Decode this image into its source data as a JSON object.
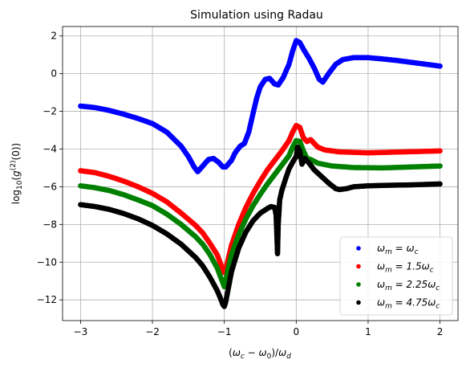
{
  "chart_data": {
    "type": "scatter",
    "title": "Simulation using Radau",
    "xlabel": "(ω_c − ω_0)/ω_d",
    "ylabel": "log₁₀(g⁽²⁾(0))",
    "xlim": [
      -3.25,
      2.25
    ],
    "ylim": [
      -13.1,
      2.5
    ],
    "xticks": [
      -3,
      -2,
      -1,
      0,
      1,
      2
    ],
    "xtick_labels": [
      "−3",
      "−2",
      "−1",
      "0",
      "1",
      "2"
    ],
    "yticks": [
      -12,
      -10,
      -8,
      -6,
      -4,
      -2,
      0,
      2
    ],
    "ytick_labels": [
      "−12",
      "−10",
      "−8",
      "−6",
      "−4",
      "−2",
      "0",
      "2"
    ],
    "grid": true,
    "legend_position": "lower-right",
    "series": [
      {
        "name": "ω_m = ω_c",
        "label_parts": [
          "ω",
          "m",
          " = ω",
          "c"
        ],
        "color": "#0000ff",
        "points": [
          [
            -3.0,
            -1.72
          ],
          [
            -2.8,
            -1.8
          ],
          [
            -2.6,
            -1.95
          ],
          [
            -2.4,
            -2.15
          ],
          [
            -2.2,
            -2.38
          ],
          [
            -2.0,
            -2.65
          ],
          [
            -1.8,
            -3.1
          ],
          [
            -1.6,
            -3.85
          ],
          [
            -1.5,
            -4.4
          ],
          [
            -1.42,
            -4.95
          ],
          [
            -1.37,
            -5.2
          ],
          [
            -1.3,
            -4.9
          ],
          [
            -1.22,
            -4.55
          ],
          [
            -1.15,
            -4.5
          ],
          [
            -1.08,
            -4.7
          ],
          [
            -1.02,
            -4.95
          ],
          [
            -0.98,
            -4.95
          ],
          [
            -0.9,
            -4.6
          ],
          [
            -0.85,
            -4.2
          ],
          [
            -0.78,
            -3.85
          ],
          [
            -0.72,
            -3.7
          ],
          [
            -0.66,
            -3.1
          ],
          [
            -0.6,
            -2.1
          ],
          [
            -0.55,
            -1.3
          ],
          [
            -0.5,
            -0.7
          ],
          [
            -0.43,
            -0.3
          ],
          [
            -0.37,
            -0.25
          ],
          [
            -0.3,
            -0.55
          ],
          [
            -0.25,
            -0.6
          ],
          [
            -0.18,
            -0.2
          ],
          [
            -0.1,
            0.5
          ],
          [
            -0.05,
            1.2
          ],
          [
            0.0,
            1.75
          ],
          [
            0.05,
            1.65
          ],
          [
            0.1,
            1.3
          ],
          [
            0.18,
            0.8
          ],
          [
            0.25,
            0.3
          ],
          [
            0.32,
            -0.3
          ],
          [
            0.37,
            -0.45
          ],
          [
            0.45,
            0.0
          ],
          [
            0.55,
            0.5
          ],
          [
            0.65,
            0.75
          ],
          [
            0.8,
            0.85
          ],
          [
            1.0,
            0.85
          ],
          [
            1.2,
            0.78
          ],
          [
            1.4,
            0.7
          ],
          [
            1.6,
            0.6
          ],
          [
            1.8,
            0.5
          ],
          [
            2.0,
            0.4
          ]
        ]
      },
      {
        "name": "ω_m = 1.5ω_c",
        "label_parts": [
          "ω",
          "m",
          " = 1.5ω",
          "c"
        ],
        "color": "#ff0000",
        "points": [
          [
            -3.0,
            -5.15
          ],
          [
            -2.8,
            -5.25
          ],
          [
            -2.6,
            -5.45
          ],
          [
            -2.4,
            -5.7
          ],
          [
            -2.2,
            -6.0
          ],
          [
            -2.0,
            -6.35
          ],
          [
            -1.8,
            -6.8
          ],
          [
            -1.6,
            -7.4
          ],
          [
            -1.4,
            -8.05
          ],
          [
            -1.3,
            -8.45
          ],
          [
            -1.2,
            -9.0
          ],
          [
            -1.1,
            -9.6
          ],
          [
            -1.05,
            -10.1
          ],
          [
            -1.02,
            -10.4
          ],
          [
            -1.0,
            -10.55
          ],
          [
            -0.98,
            -10.35
          ],
          [
            -0.95,
            -9.9
          ],
          [
            -0.9,
            -9.1
          ],
          [
            -0.8,
            -8.0
          ],
          [
            -0.7,
            -7.1
          ],
          [
            -0.6,
            -6.35
          ],
          [
            -0.5,
            -5.7
          ],
          [
            -0.4,
            -5.1
          ],
          [
            -0.3,
            -4.6
          ],
          [
            -0.2,
            -4.1
          ],
          [
            -0.1,
            -3.55
          ],
          [
            -0.05,
            -3.1
          ],
          [
            0.0,
            -2.75
          ],
          [
            0.05,
            -2.85
          ],
          [
            0.1,
            -3.4
          ],
          [
            0.15,
            -3.6
          ],
          [
            0.2,
            -3.5
          ],
          [
            0.25,
            -3.7
          ],
          [
            0.3,
            -3.9
          ],
          [
            0.4,
            -4.05
          ],
          [
            0.6,
            -4.15
          ],
          [
            1.0,
            -4.2
          ],
          [
            1.5,
            -4.15
          ],
          [
            2.0,
            -4.1
          ]
        ]
      },
      {
        "name": "ω_m = 2.25ω_c",
        "label_parts": [
          "ω",
          "m",
          " = 2.25ω",
          "c"
        ],
        "color": "#008000",
        "points": [
          [
            -3.0,
            -5.95
          ],
          [
            -2.8,
            -6.05
          ],
          [
            -2.6,
            -6.2
          ],
          [
            -2.4,
            -6.42
          ],
          [
            -2.2,
            -6.7
          ],
          [
            -2.0,
            -7.0
          ],
          [
            -1.8,
            -7.45
          ],
          [
            -1.6,
            -8.0
          ],
          [
            -1.4,
            -8.65
          ],
          [
            -1.3,
            -9.05
          ],
          [
            -1.2,
            -9.6
          ],
          [
            -1.1,
            -10.3
          ],
          [
            -1.05,
            -10.8
          ],
          [
            -1.02,
            -11.1
          ],
          [
            -1.0,
            -11.3
          ],
          [
            -0.98,
            -11.0
          ],
          [
            -0.95,
            -10.4
          ],
          [
            -0.9,
            -9.6
          ],
          [
            -0.8,
            -8.55
          ],
          [
            -0.7,
            -7.7
          ],
          [
            -0.6,
            -7.0
          ],
          [
            -0.5,
            -6.4
          ],
          [
            -0.4,
            -5.85
          ],
          [
            -0.3,
            -5.35
          ],
          [
            -0.2,
            -4.85
          ],
          [
            -0.1,
            -4.35
          ],
          [
            -0.05,
            -3.9
          ],
          [
            0.0,
            -3.55
          ],
          [
            0.05,
            -3.6
          ],
          [
            0.1,
            -4.1
          ],
          [
            0.15,
            -4.5
          ],
          [
            0.2,
            -4.55
          ],
          [
            0.3,
            -4.75
          ],
          [
            0.5,
            -4.9
          ],
          [
            0.8,
            -4.98
          ],
          [
            1.2,
            -5.0
          ],
          [
            1.6,
            -4.95
          ],
          [
            2.0,
            -4.9
          ]
        ]
      },
      {
        "name": "ω_m = 4.75ω_c",
        "label_parts": [
          "ω",
          "m",
          " = 4.75ω",
          "c"
        ],
        "color": "#000000",
        "points": [
          [
            -3.0,
            -6.95
          ],
          [
            -2.8,
            -7.05
          ],
          [
            -2.6,
            -7.2
          ],
          [
            -2.4,
            -7.42
          ],
          [
            -2.2,
            -7.7
          ],
          [
            -2.0,
            -8.05
          ],
          [
            -1.8,
            -8.5
          ],
          [
            -1.6,
            -9.05
          ],
          [
            -1.4,
            -9.75
          ],
          [
            -1.3,
            -10.2
          ],
          [
            -1.2,
            -10.8
          ],
          [
            -1.1,
            -11.5
          ],
          [
            -1.05,
            -11.95
          ],
          [
            -1.02,
            -12.25
          ],
          [
            -1.0,
            -12.35
          ],
          [
            -0.98,
            -12.1
          ],
          [
            -0.95,
            -11.5
          ],
          [
            -0.9,
            -10.5
          ],
          [
            -0.8,
            -9.25
          ],
          [
            -0.7,
            -8.4
          ],
          [
            -0.6,
            -7.8
          ],
          [
            -0.5,
            -7.4
          ],
          [
            -0.4,
            -7.15
          ],
          [
            -0.35,
            -7.05
          ],
          [
            -0.3,
            -7.1
          ],
          [
            -0.28,
            -7.5
          ],
          [
            -0.27,
            -8.5
          ],
          [
            -0.26,
            -9.55
          ],
          [
            -0.25,
            -8.0
          ],
          [
            -0.23,
            -6.7
          ],
          [
            -0.2,
            -6.2
          ],
          [
            -0.15,
            -5.6
          ],
          [
            -0.1,
            -5.05
          ],
          [
            -0.05,
            -4.7
          ],
          [
            0.0,
            -4.4
          ],
          [
            0.02,
            -3.9
          ],
          [
            0.05,
            -4.1
          ],
          [
            0.08,
            -4.8
          ],
          [
            0.12,
            -4.5
          ],
          [
            0.18,
            -4.75
          ],
          [
            0.25,
            -5.1
          ],
          [
            0.35,
            -5.45
          ],
          [
            0.45,
            -5.8
          ],
          [
            0.55,
            -6.1
          ],
          [
            0.6,
            -6.15
          ],
          [
            0.7,
            -6.1
          ],
          [
            0.8,
            -6.0
          ],
          [
            1.0,
            -5.95
          ],
          [
            1.3,
            -5.92
          ],
          [
            1.6,
            -5.9
          ],
          [
            2.0,
            -5.85
          ]
        ]
      }
    ]
  }
}
